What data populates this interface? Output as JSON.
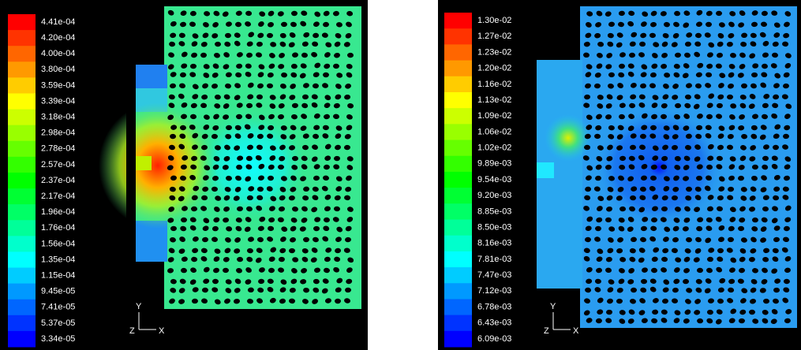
{
  "panels": [
    {
      "colorbar": [
        "4.41e-04",
        "4.20e-04",
        "4.00e-04",
        "3.80e-04",
        "3.59e-04",
        "3.39e-04",
        "3.18e-04",
        "2.98e-04",
        "2.78e-04",
        "2.57e-04",
        "2.37e-04",
        "2.17e-04",
        "1.96e-04",
        "1.76e-04",
        "1.56e-04",
        "1.35e-04",
        "1.15e-04",
        "9.45e-05",
        "7.41e-05",
        "5.37e-05",
        "3.34e-05"
      ],
      "axes": {
        "y": "Y",
        "z": "Z",
        "x": "X"
      }
    },
    {
      "colorbar": [
        "1.30e-02",
        "1.27e-02",
        "1.23e-02",
        "1.20e-02",
        "1.16e-02",
        "1.13e-02",
        "1.09e-02",
        "1.06e-02",
        "1.02e-02",
        "9.89e-03",
        "9.54e-03",
        "9.20e-03",
        "8.85e-03",
        "8.50e-03",
        "8.16e-03",
        "7.81e-03",
        "7.47e-03",
        "7.12e-03",
        "6.78e-03",
        "6.43e-03",
        "6.09e-03"
      ],
      "axes": {
        "y": "Y",
        "z": "Z",
        "x": "X"
      }
    }
  ]
}
